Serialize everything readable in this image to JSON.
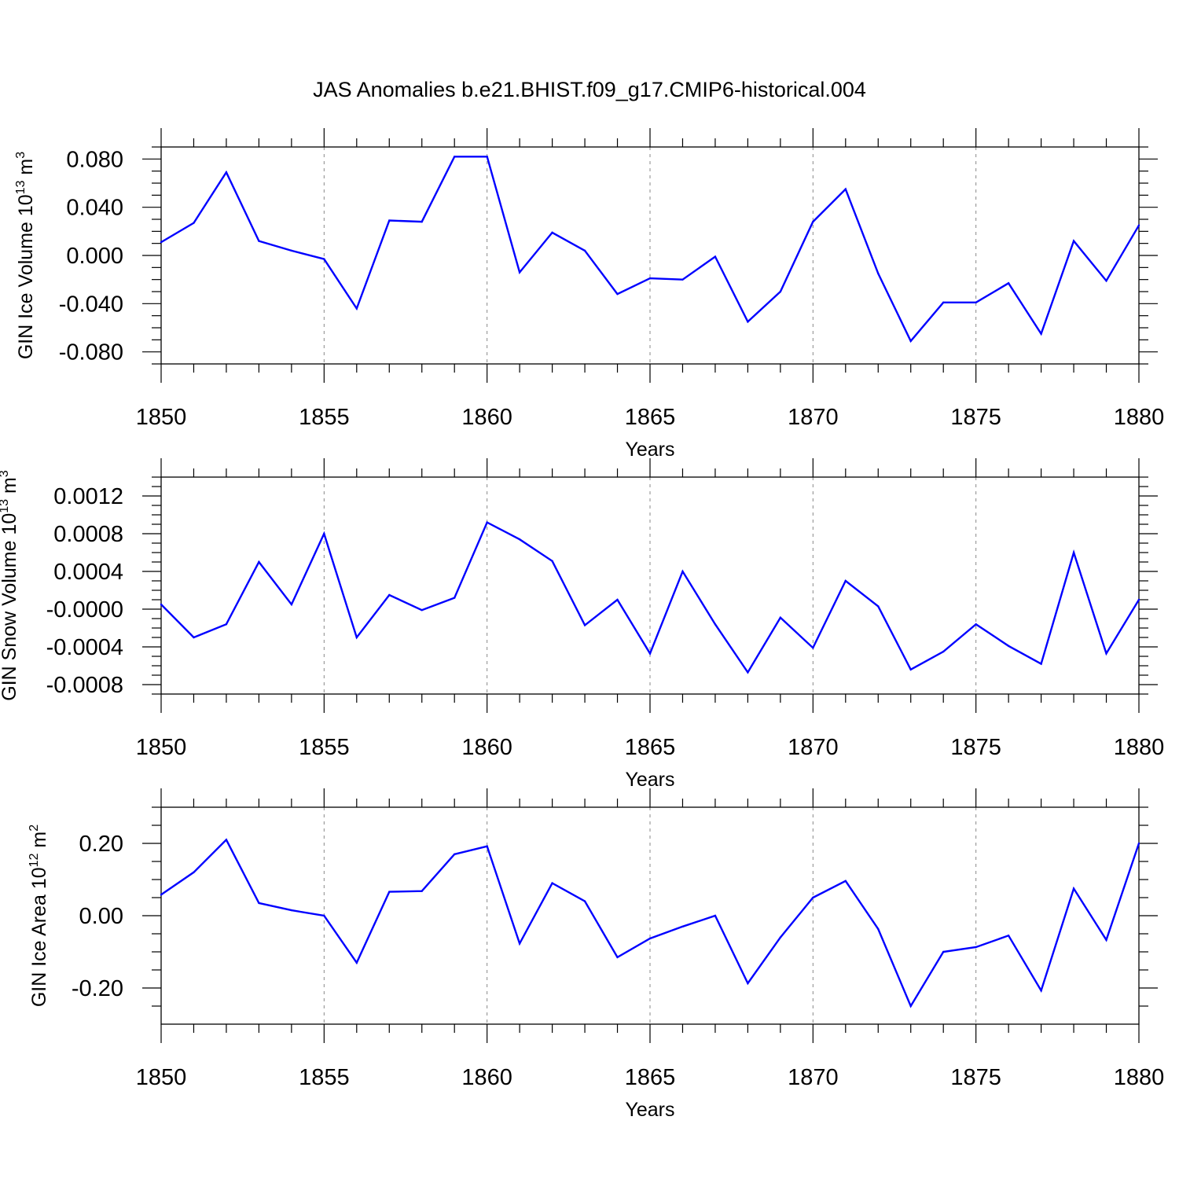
{
  "title": "JAS Anomalies b.e21.BHIST.f09_g17.CMIP6-historical.004",
  "colors": {
    "line": "#0000ff",
    "axis": "#000000",
    "grid": "#888888"
  },
  "chart_data": [
    {
      "type": "line",
      "xlabel": "Years",
      "ylabel": {
        "text": "GIN Ice Volume 10",
        "sup": "13",
        "unit": " m",
        "unit_sup": "3"
      },
      "xlim": [
        1850,
        1880
      ],
      "ylim": [
        -0.09,
        0.09
      ],
      "xticks": [
        "1850",
        "1855",
        "1860",
        "1865",
        "1870",
        "1875",
        "1880"
      ],
      "yticks": [
        {
          "value": 0.08,
          "label": "0.080"
        },
        {
          "value": 0.04,
          "label": "0.040"
        },
        {
          "value": 0.0,
          "label": "0.000"
        },
        {
          "value": -0.04,
          "label": "-0.040"
        },
        {
          "value": -0.08,
          "label": "-0.080"
        }
      ],
      "grid": "vertical dashed at major x ticks",
      "series": [
        {
          "x": [
            1850,
            1851,
            1852,
            1853,
            1854,
            1855,
            1856,
            1857,
            1858,
            1859,
            1860,
            1861,
            1862,
            1863,
            1864,
            1865,
            1866,
            1867,
            1868,
            1869,
            1870,
            1871,
            1872,
            1873,
            1874,
            1875,
            1876,
            1877,
            1878,
            1879,
            1880
          ],
          "values": [
            0.011,
            0.027,
            0.069,
            0.012,
            0.004,
            -0.003,
            -0.044,
            0.029,
            0.028,
            0.082,
            0.082,
            -0.014,
            0.019,
            0.004,
            -0.032,
            -0.019,
            -0.02,
            -0.001,
            -0.055,
            -0.03,
            0.028,
            0.055,
            -0.015,
            -0.071,
            -0.039,
            -0.039,
            -0.023,
            -0.065,
            0.012,
            -0.021,
            0.025
          ]
        }
      ]
    },
    {
      "type": "line",
      "xlabel": "Years",
      "ylabel": {
        "text": "GIN Snow Volume 10",
        "sup": "13",
        "unit": " m",
        "unit_sup": "3"
      },
      "xlim": [
        1850,
        1880
      ],
      "ylim": [
        -0.0009,
        0.0014
      ],
      "xticks": [
        "1850",
        "1855",
        "1860",
        "1865",
        "1870",
        "1875",
        "1880"
      ],
      "yticks": [
        {
          "value": 0.0012,
          "label": "0.0012"
        },
        {
          "value": 0.0008,
          "label": "0.0008"
        },
        {
          "value": 0.0004,
          "label": "0.0004"
        },
        {
          "value": 0.0,
          "label": "-0.0000"
        },
        {
          "value": -0.0004,
          "label": "-0.0004"
        },
        {
          "value": -0.0008,
          "label": "-0.0008"
        }
      ],
      "grid": "vertical dashed at major x ticks",
      "series": [
        {
          "x": [
            1850,
            1851,
            1852,
            1853,
            1854,
            1855,
            1856,
            1857,
            1858,
            1859,
            1860,
            1861,
            1862,
            1863,
            1864,
            1865,
            1866,
            1867,
            1868,
            1869,
            1870,
            1871,
            1872,
            1873,
            1874,
            1875,
            1876,
            1877,
            1878,
            1879,
            1880
          ],
          "values": [
            5e-05,
            -0.0003,
            -0.00016,
            0.0005,
            5e-05,
            0.0008,
            -0.0003,
            0.00015,
            -1e-05,
            0.00012,
            0.00092,
            0.00074,
            0.00051,
            -0.00017,
            0.0001,
            -0.00047,
            0.0004,
            -0.00016,
            -0.00067,
            -9e-05,
            -0.00041,
            0.0003,
            3e-05,
            -0.00064,
            -0.00045,
            -0.00016,
            -0.00039,
            -0.00058,
            0.0006,
            -0.00047,
            0.0001
          ]
        }
      ]
    },
    {
      "type": "line",
      "xlabel": "Years",
      "ylabel": {
        "text": "GIN Ice Area 10",
        "sup": "12",
        "unit": " m",
        "unit_sup": "2"
      },
      "xlim": [
        1850,
        1880
      ],
      "ylim": [
        -0.3,
        0.3
      ],
      "xticks": [
        "1850",
        "1855",
        "1860",
        "1865",
        "1870",
        "1875",
        "1880"
      ],
      "yticks": [
        {
          "value": 0.2,
          "label": "0.20"
        },
        {
          "value": 0.0,
          "label": "0.00"
        },
        {
          "value": -0.2,
          "label": "-0.20"
        }
      ],
      "grid": "vertical dashed at major x ticks",
      "series": [
        {
          "x": [
            1850,
            1851,
            1852,
            1853,
            1854,
            1855,
            1856,
            1857,
            1858,
            1859,
            1860,
            1861,
            1862,
            1863,
            1864,
            1865,
            1866,
            1867,
            1868,
            1869,
            1870,
            1871,
            1872,
            1873,
            1874,
            1875,
            1876,
            1877,
            1878,
            1879,
            1880
          ],
          "values": [
            0.058,
            0.12,
            0.21,
            0.035,
            0.015,
            0.0,
            -0.13,
            0.066,
            0.068,
            0.17,
            0.192,
            -0.077,
            0.09,
            0.04,
            -0.115,
            -0.063,
            -0.03,
            0.0,
            -0.187,
            -0.06,
            0.05,
            0.096,
            -0.037,
            -0.25,
            -0.1,
            -0.087,
            -0.055,
            -0.207,
            0.075,
            -0.067,
            0.2
          ]
        }
      ]
    }
  ]
}
